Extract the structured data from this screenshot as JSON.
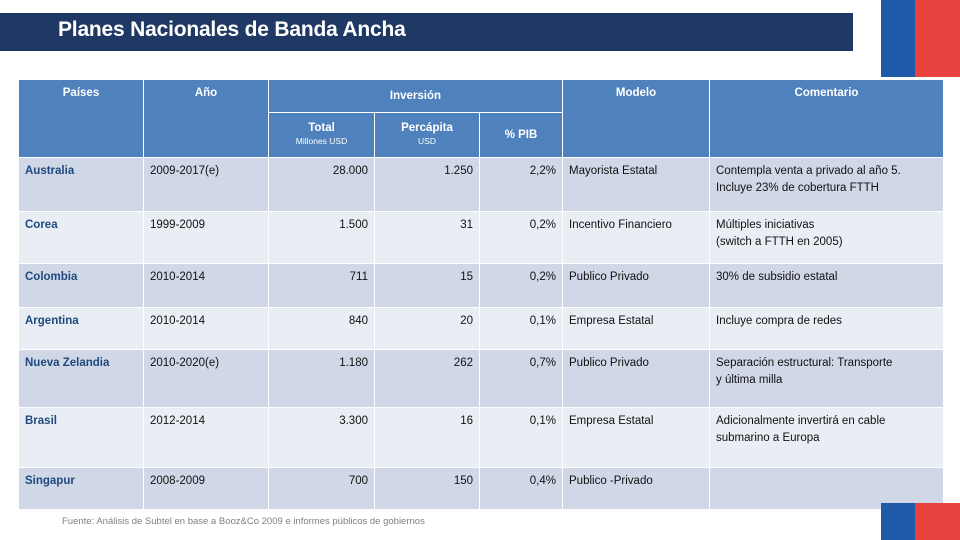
{
  "title": "Planes Nacionales de Banda Ancha",
  "headers": {
    "paises": "Países",
    "anio": "Año",
    "inversion": "Inversión",
    "modelo": "Modelo",
    "comentario": "Comentario",
    "total": "Total",
    "total_sub": "Millones USD",
    "percapita": "Percápita",
    "percapita_sub": "USD",
    "pib": "% PIB"
  },
  "rows": [
    {
      "country": "Australia",
      "year": "2009-2017(e)",
      "total": "28.000",
      "percapita": "1.250",
      "pib": "2,2%",
      "model": "Mayorista Estatal",
      "comment1": "Contempla venta a privado al año 5.",
      "comment2": "Incluye 23% de cobertura FTTH"
    },
    {
      "country": "Corea",
      "year": "1999-2009",
      "total": "1.500",
      "percapita": "31",
      "pib": "0,2%",
      "model": "Incentivo Financiero",
      "comment1": "Múltiples iniciativas",
      "comment2": "(switch a FTTH en 2005)"
    },
    {
      "country": "Colombia",
      "year": "2010-2014",
      "total": "711",
      "percapita": "15",
      "pib": "0,2%",
      "model": "Publico Privado",
      "comment1": "30% de subsidio estatal",
      "comment2": ""
    },
    {
      "country": "Argentina",
      "year": "2010-2014",
      "total": "840",
      "percapita": "20",
      "pib": "0,1%",
      "model": "Empresa Estatal",
      "comment1": "Incluye compra de redes",
      "comment2": ""
    },
    {
      "country": "Nueva Zelandia",
      "year": "2010-2020(e)",
      "total": "1.180",
      "percapita": "262",
      "pib": "0,7%",
      "model": "Publico Privado",
      "comment1": "Separación estructural: Transporte",
      "comment2": "y última milla"
    },
    {
      "country": "Brasil",
      "year": "2012-2014",
      "total": "3.300",
      "percapita": "16",
      "pib": "0,1%",
      "model": "Empresa Estatal",
      "comment1": "Adicionalmente invertirá en cable",
      "comment2": "submarino a Europa"
    },
    {
      "country": "Singapur",
      "year": "2008-2009",
      "total": "700",
      "percapita": "150",
      "pib": "0,4%",
      "model": "Publico -Privado",
      "comment1": "",
      "comment2": ""
    }
  ],
  "source": "Fuente: Análisis de Subtel en base a Booz&Co 2009 e informes públicos de gobiernos",
  "colors": {
    "title_bar": "#1f3864",
    "header": "#4f81bd",
    "row_dark": "#d0d8e8",
    "row_light": "#e9edf4",
    "flag_blue": "#1e5aa8",
    "flag_red": "#e8413e"
  }
}
